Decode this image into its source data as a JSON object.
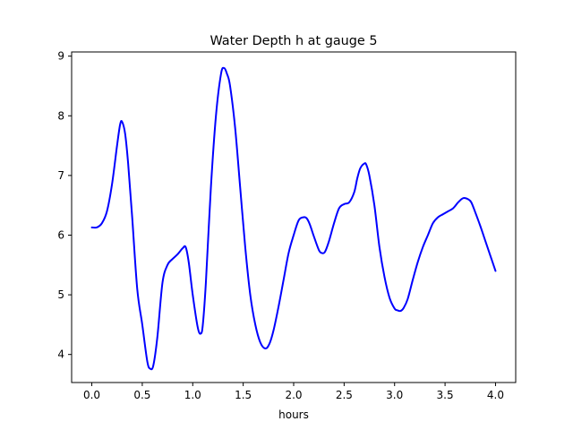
{
  "chart_data": {
    "type": "line",
    "title": "Water Depth h at gauge 5",
    "xlabel": "hours",
    "ylabel": "",
    "xlim": [
      -0.2,
      4.2
    ],
    "ylim": [
      3.53,
      9.07
    ],
    "xticks": [
      0.0,
      0.5,
      1.0,
      1.5,
      2.0,
      2.5,
      3.0,
      3.5,
      4.0
    ],
    "xtick_labels": [
      "0.0",
      "0.5",
      "1.0",
      "1.5",
      "2.0",
      "2.5",
      "3.0",
      "3.5",
      "4.0"
    ],
    "yticks": [
      4,
      5,
      6,
      7,
      8,
      9
    ],
    "ytick_labels": [
      "4",
      "5",
      "6",
      "7",
      "8",
      "9"
    ],
    "grid": false,
    "legend": "none",
    "series": [
      {
        "color": "#0000ff",
        "x": [
          0.0,
          0.05,
          0.1,
          0.15,
          0.2,
          0.25,
          0.28,
          0.3,
          0.33,
          0.36,
          0.4,
          0.45,
          0.5,
          0.55,
          0.58,
          0.61,
          0.65,
          0.7,
          0.75,
          0.8,
          0.85,
          0.9,
          0.93,
          0.96,
          1.0,
          1.05,
          1.08,
          1.1,
          1.13,
          1.18,
          1.23,
          1.28,
          1.31,
          1.34,
          1.37,
          1.42,
          1.47,
          1.52,
          1.57,
          1.62,
          1.67,
          1.72,
          1.76,
          1.8,
          1.85,
          1.9,
          1.95,
          2.0,
          2.05,
          2.1,
          2.13,
          2.16,
          2.2,
          2.25,
          2.28,
          2.31,
          2.35,
          2.4,
          2.45,
          2.5,
          2.55,
          2.6,
          2.63,
          2.66,
          2.7,
          2.72,
          2.75,
          2.8,
          2.85,
          2.9,
          2.95,
          3.0,
          3.03,
          3.06,
          3.09,
          3.13,
          3.18,
          3.23,
          3.28,
          3.33,
          3.38,
          3.43,
          3.48,
          3.53,
          3.58,
          3.63,
          3.68,
          3.73,
          3.76,
          3.8,
          3.85,
          3.9,
          3.95,
          4.0
        ],
        "y": [
          6.13,
          6.13,
          6.2,
          6.4,
          6.85,
          7.5,
          7.85,
          7.9,
          7.7,
          7.2,
          6.3,
          5.1,
          4.5,
          3.88,
          3.76,
          3.82,
          4.3,
          5.2,
          5.5,
          5.6,
          5.68,
          5.78,
          5.8,
          5.55,
          5.0,
          4.45,
          4.35,
          4.5,
          5.2,
          6.8,
          8.0,
          8.7,
          8.8,
          8.7,
          8.5,
          7.8,
          6.8,
          5.8,
          5.0,
          4.5,
          4.2,
          4.1,
          4.18,
          4.4,
          4.8,
          5.25,
          5.7,
          6.0,
          6.25,
          6.3,
          6.28,
          6.18,
          5.98,
          5.75,
          5.7,
          5.72,
          5.9,
          6.2,
          6.45,
          6.52,
          6.55,
          6.72,
          6.95,
          7.12,
          7.2,
          7.18,
          7.0,
          6.5,
          5.8,
          5.3,
          4.95,
          4.77,
          4.74,
          4.73,
          4.78,
          4.93,
          5.25,
          5.55,
          5.8,
          6.0,
          6.2,
          6.3,
          6.35,
          6.4,
          6.45,
          6.55,
          6.62,
          6.6,
          6.55,
          6.38,
          6.15,
          5.9,
          5.65,
          5.4
        ]
      }
    ]
  }
}
